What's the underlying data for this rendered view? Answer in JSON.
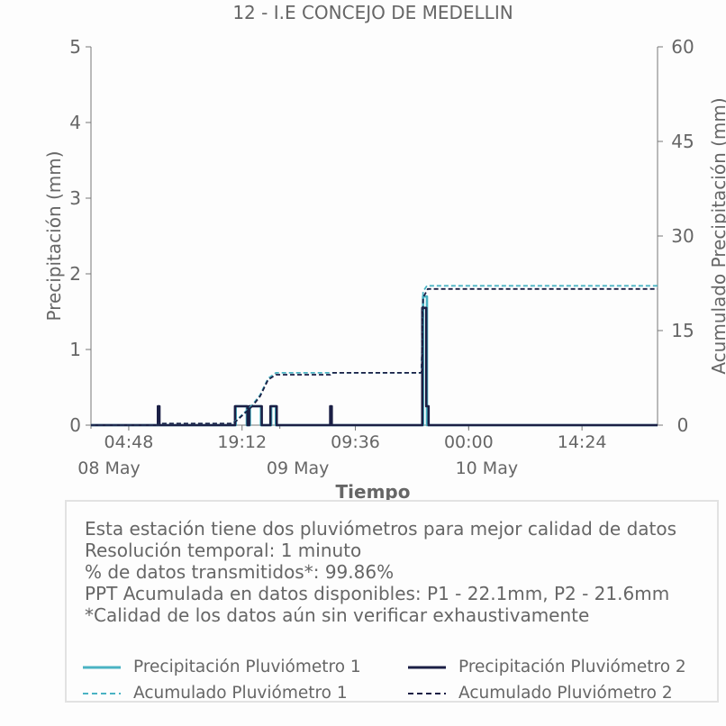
{
  "chart_data": {
    "type": "line",
    "title": "12 - I.E CONCEJO DE MEDELLIN",
    "xlabel": "Tiempo",
    "ylabel": "Precipitación (mm)",
    "ylabel_right": "Acumulado Precipitación (mm)",
    "ylim": [
      0,
      5
    ],
    "ylim_right": [
      0,
      60
    ],
    "yticks": [
      "0",
      "1",
      "2",
      "3",
      "4",
      "5"
    ],
    "yticks_right": [
      "0",
      "15",
      "30",
      "45",
      "60"
    ],
    "x_tick_labels": [
      "04:48",
      "19:12",
      "09:36",
      "00:00",
      "14:24"
    ],
    "x_date_labels": [
      "08 May",
      "09 May",
      "10 May"
    ],
    "x_range_hours": [
      0,
      72
    ],
    "grid": false,
    "legend_position": "bottom",
    "series": [
      {
        "name": "Precipitación Pluviómetro 1",
        "axis": "left",
        "style": "solid",
        "color": "#4ab3c3",
        "points": [
          [
            0,
            0
          ],
          [
            18.4,
            0
          ],
          [
            18.4,
            0.25
          ],
          [
            19.8,
            0.25
          ],
          [
            19.8,
            0
          ],
          [
            20.2,
            0
          ],
          [
            20.2,
            0.25
          ],
          [
            21.6,
            0.25
          ],
          [
            21.6,
            0
          ],
          [
            22.9,
            0
          ],
          [
            22.9,
            0.25
          ],
          [
            23.5,
            0.25
          ],
          [
            23.5,
            0
          ],
          [
            42.2,
            0
          ],
          [
            42.2,
            1.7
          ],
          [
            42.7,
            1.7
          ],
          [
            42.7,
            0
          ],
          [
            72,
            0
          ]
        ]
      },
      {
        "name": "Precipitación Pluviómetro 2",
        "axis": "left",
        "style": "solid",
        "color": "#1b1f45",
        "points": [
          [
            0,
            0
          ],
          [
            8.5,
            0
          ],
          [
            8.5,
            0.25
          ],
          [
            8.7,
            0.25
          ],
          [
            8.7,
            0
          ],
          [
            18.3,
            0
          ],
          [
            18.3,
            0.25
          ],
          [
            19.9,
            0.25
          ],
          [
            19.9,
            0
          ],
          [
            20.1,
            0
          ],
          [
            20.1,
            0.25
          ],
          [
            21.7,
            0.25
          ],
          [
            21.7,
            0
          ],
          [
            22.8,
            0
          ],
          [
            22.8,
            0.25
          ],
          [
            23.6,
            0.25
          ],
          [
            23.6,
            0
          ],
          [
            30.4,
            0
          ],
          [
            30.4,
            0.25
          ],
          [
            30.6,
            0.25
          ],
          [
            30.6,
            0
          ],
          [
            42.1,
            0
          ],
          [
            42.1,
            1.55
          ],
          [
            42.6,
            1.55
          ],
          [
            42.6,
            0.25
          ],
          [
            42.9,
            0.25
          ],
          [
            42.9,
            0
          ],
          [
            72,
            0
          ]
        ]
      },
      {
        "name": "Acumulado Pluviómetro 1",
        "axis": "right",
        "style": "dashed",
        "color": "#4ab3c3",
        "points": [
          [
            0,
            0
          ],
          [
            8.5,
            0
          ],
          [
            8.6,
            0.25
          ],
          [
            18.0,
            0.25
          ],
          [
            18.5,
            0.8
          ],
          [
            20.5,
            3.2
          ],
          [
            21.5,
            4.8
          ],
          [
            22.5,
            7.4
          ],
          [
            23.5,
            8.3
          ],
          [
            30.0,
            8.3
          ],
          [
            42.0,
            8.3
          ],
          [
            42.2,
            21.2
          ],
          [
            42.7,
            22.1
          ],
          [
            72,
            22.1
          ]
        ]
      },
      {
        "name": "Acumulado Pluviómetro 2",
        "axis": "right",
        "style": "dashed",
        "color": "#1b1f45",
        "points": [
          [
            0,
            0
          ],
          [
            8.5,
            0
          ],
          [
            8.6,
            0.25
          ],
          [
            18.0,
            0.25
          ],
          [
            18.5,
            0.7
          ],
          [
            20.5,
            3.0
          ],
          [
            21.5,
            4.6
          ],
          [
            22.5,
            7.2
          ],
          [
            23.5,
            8.0
          ],
          [
            30.4,
            8.0
          ],
          [
            30.6,
            8.3
          ],
          [
            42.0,
            8.3
          ],
          [
            42.2,
            20.2
          ],
          [
            42.8,
            21.6
          ],
          [
            72,
            21.6
          ]
        ]
      }
    ]
  },
  "info": {
    "lines": [
      "Esta estación tiene dos pluviómetros para mejor calidad de datos",
      "Resolución temporal: 1 minuto",
      "% de datos transmitidos*: 99.86%",
      "PPT Acumulada en datos disponibles: P1 - 22.1mm, P2 - 21.6mm",
      "*Calidad de los datos aún sin verificar exhaustivamente"
    ]
  },
  "legend": {
    "items": [
      {
        "label": "Precipitación Pluviómetro 1",
        "color": "#4ab3c3",
        "style": "solid"
      },
      {
        "label": "Precipitación Pluviómetro 2",
        "color": "#1b1f45",
        "style": "solid"
      },
      {
        "label": "Acumulado Pluviómetro 1",
        "color": "#4ab3c3",
        "style": "dashed"
      },
      {
        "label": "Acumulado Pluviómetro 2",
        "color": "#1b1f45",
        "style": "dashed"
      }
    ]
  }
}
